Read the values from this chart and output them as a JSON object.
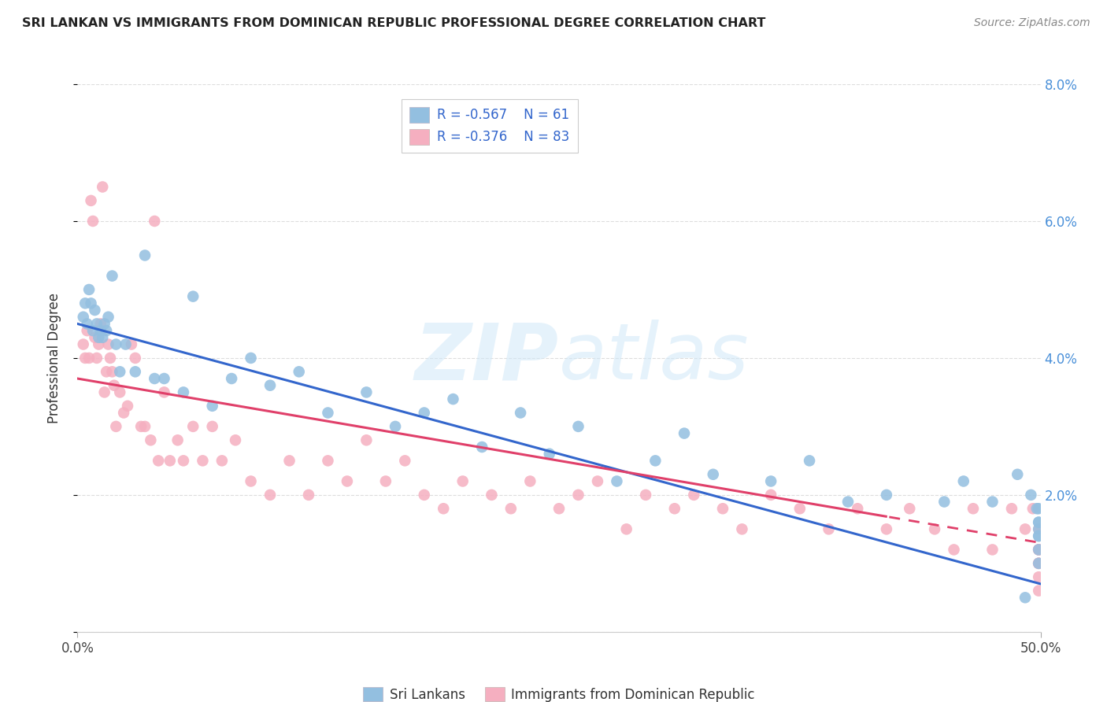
{
  "title": "SRI LANKAN VS IMMIGRANTS FROM DOMINICAN REPUBLIC PROFESSIONAL DEGREE CORRELATION CHART",
  "source": "Source: ZipAtlas.com",
  "ylabel": "Professional Degree",
  "xlim": [
    0.0,
    0.5
  ],
  "ylim": [
    0.0,
    0.08
  ],
  "xticks": [
    0.0,
    0.5
  ],
  "xtick_labels": [
    "0.0%",
    "50.0%"
  ],
  "yticks": [
    0.0,
    0.02,
    0.04,
    0.06,
    0.08
  ],
  "ytick_labels_right": [
    "",
    "2.0%",
    "4.0%",
    "6.0%",
    "8.0%"
  ],
  "sri_lankan_R": -0.567,
  "sri_lankan_N": 61,
  "dominican_R": -0.376,
  "dominican_N": 83,
  "blue_color": "#93bfe0",
  "blue_line_color": "#3366cc",
  "pink_color": "#f5afc0",
  "pink_line_color": "#e0406a",
  "legend_label_1": "Sri Lankans",
  "legend_label_2": "Immigrants from Dominican Republic",
  "watermark_top": "ZIP",
  "watermark_bot": "atlas",
  "background_color": "#ffffff",
  "grid_color": "#dddddd",
  "sri_lankan_x": [
    0.003,
    0.004,
    0.005,
    0.006,
    0.007,
    0.008,
    0.009,
    0.01,
    0.011,
    0.012,
    0.013,
    0.014,
    0.015,
    0.016,
    0.018,
    0.02,
    0.022,
    0.025,
    0.03,
    0.035,
    0.04,
    0.045,
    0.055,
    0.06,
    0.07,
    0.08,
    0.09,
    0.1,
    0.115,
    0.13,
    0.15,
    0.165,
    0.18,
    0.195,
    0.21,
    0.23,
    0.245,
    0.26,
    0.28,
    0.3,
    0.315,
    0.33,
    0.36,
    0.38,
    0.4,
    0.42,
    0.45,
    0.46,
    0.475,
    0.488,
    0.492,
    0.495,
    0.498,
    0.499,
    0.499,
    0.499,
    0.499,
    0.499,
    0.499,
    0.499,
    0.499
  ],
  "sri_lankan_y": [
    0.046,
    0.048,
    0.045,
    0.05,
    0.048,
    0.044,
    0.047,
    0.045,
    0.043,
    0.044,
    0.043,
    0.045,
    0.044,
    0.046,
    0.052,
    0.042,
    0.038,
    0.042,
    0.038,
    0.055,
    0.037,
    0.037,
    0.035,
    0.049,
    0.033,
    0.037,
    0.04,
    0.036,
    0.038,
    0.032,
    0.035,
    0.03,
    0.032,
    0.034,
    0.027,
    0.032,
    0.026,
    0.03,
    0.022,
    0.025,
    0.029,
    0.023,
    0.022,
    0.025,
    0.019,
    0.02,
    0.019,
    0.022,
    0.019,
    0.023,
    0.005,
    0.02,
    0.018,
    0.015,
    0.018,
    0.016,
    0.014,
    0.016,
    0.014,
    0.012,
    0.01
  ],
  "dominican_x": [
    0.003,
    0.004,
    0.005,
    0.006,
    0.007,
    0.008,
    0.009,
    0.01,
    0.011,
    0.012,
    0.013,
    0.014,
    0.015,
    0.016,
    0.017,
    0.018,
    0.019,
    0.02,
    0.022,
    0.024,
    0.026,
    0.028,
    0.03,
    0.033,
    0.035,
    0.038,
    0.04,
    0.042,
    0.045,
    0.048,
    0.052,
    0.055,
    0.06,
    0.065,
    0.07,
    0.075,
    0.082,
    0.09,
    0.1,
    0.11,
    0.12,
    0.13,
    0.14,
    0.15,
    0.16,
    0.17,
    0.18,
    0.19,
    0.2,
    0.215,
    0.225,
    0.235,
    0.25,
    0.26,
    0.27,
    0.285,
    0.295,
    0.31,
    0.32,
    0.335,
    0.345,
    0.36,
    0.375,
    0.39,
    0.405,
    0.42,
    0.432,
    0.445,
    0.455,
    0.465,
    0.475,
    0.485,
    0.492,
    0.496,
    0.499,
    0.499,
    0.499,
    0.499,
    0.499,
    0.499,
    0.499,
    0.499,
    0.499
  ],
  "dominican_y": [
    0.042,
    0.04,
    0.044,
    0.04,
    0.063,
    0.06,
    0.043,
    0.04,
    0.042,
    0.045,
    0.065,
    0.035,
    0.038,
    0.042,
    0.04,
    0.038,
    0.036,
    0.03,
    0.035,
    0.032,
    0.033,
    0.042,
    0.04,
    0.03,
    0.03,
    0.028,
    0.06,
    0.025,
    0.035,
    0.025,
    0.028,
    0.025,
    0.03,
    0.025,
    0.03,
    0.025,
    0.028,
    0.022,
    0.02,
    0.025,
    0.02,
    0.025,
    0.022,
    0.028,
    0.022,
    0.025,
    0.02,
    0.018,
    0.022,
    0.02,
    0.018,
    0.022,
    0.018,
    0.02,
    0.022,
    0.015,
    0.02,
    0.018,
    0.02,
    0.018,
    0.015,
    0.02,
    0.018,
    0.015,
    0.018,
    0.015,
    0.018,
    0.015,
    0.012,
    0.018,
    0.012,
    0.018,
    0.015,
    0.018,
    0.015,
    0.012,
    0.01,
    0.012,
    0.01,
    0.012,
    0.01,
    0.008,
    0.006
  ]
}
